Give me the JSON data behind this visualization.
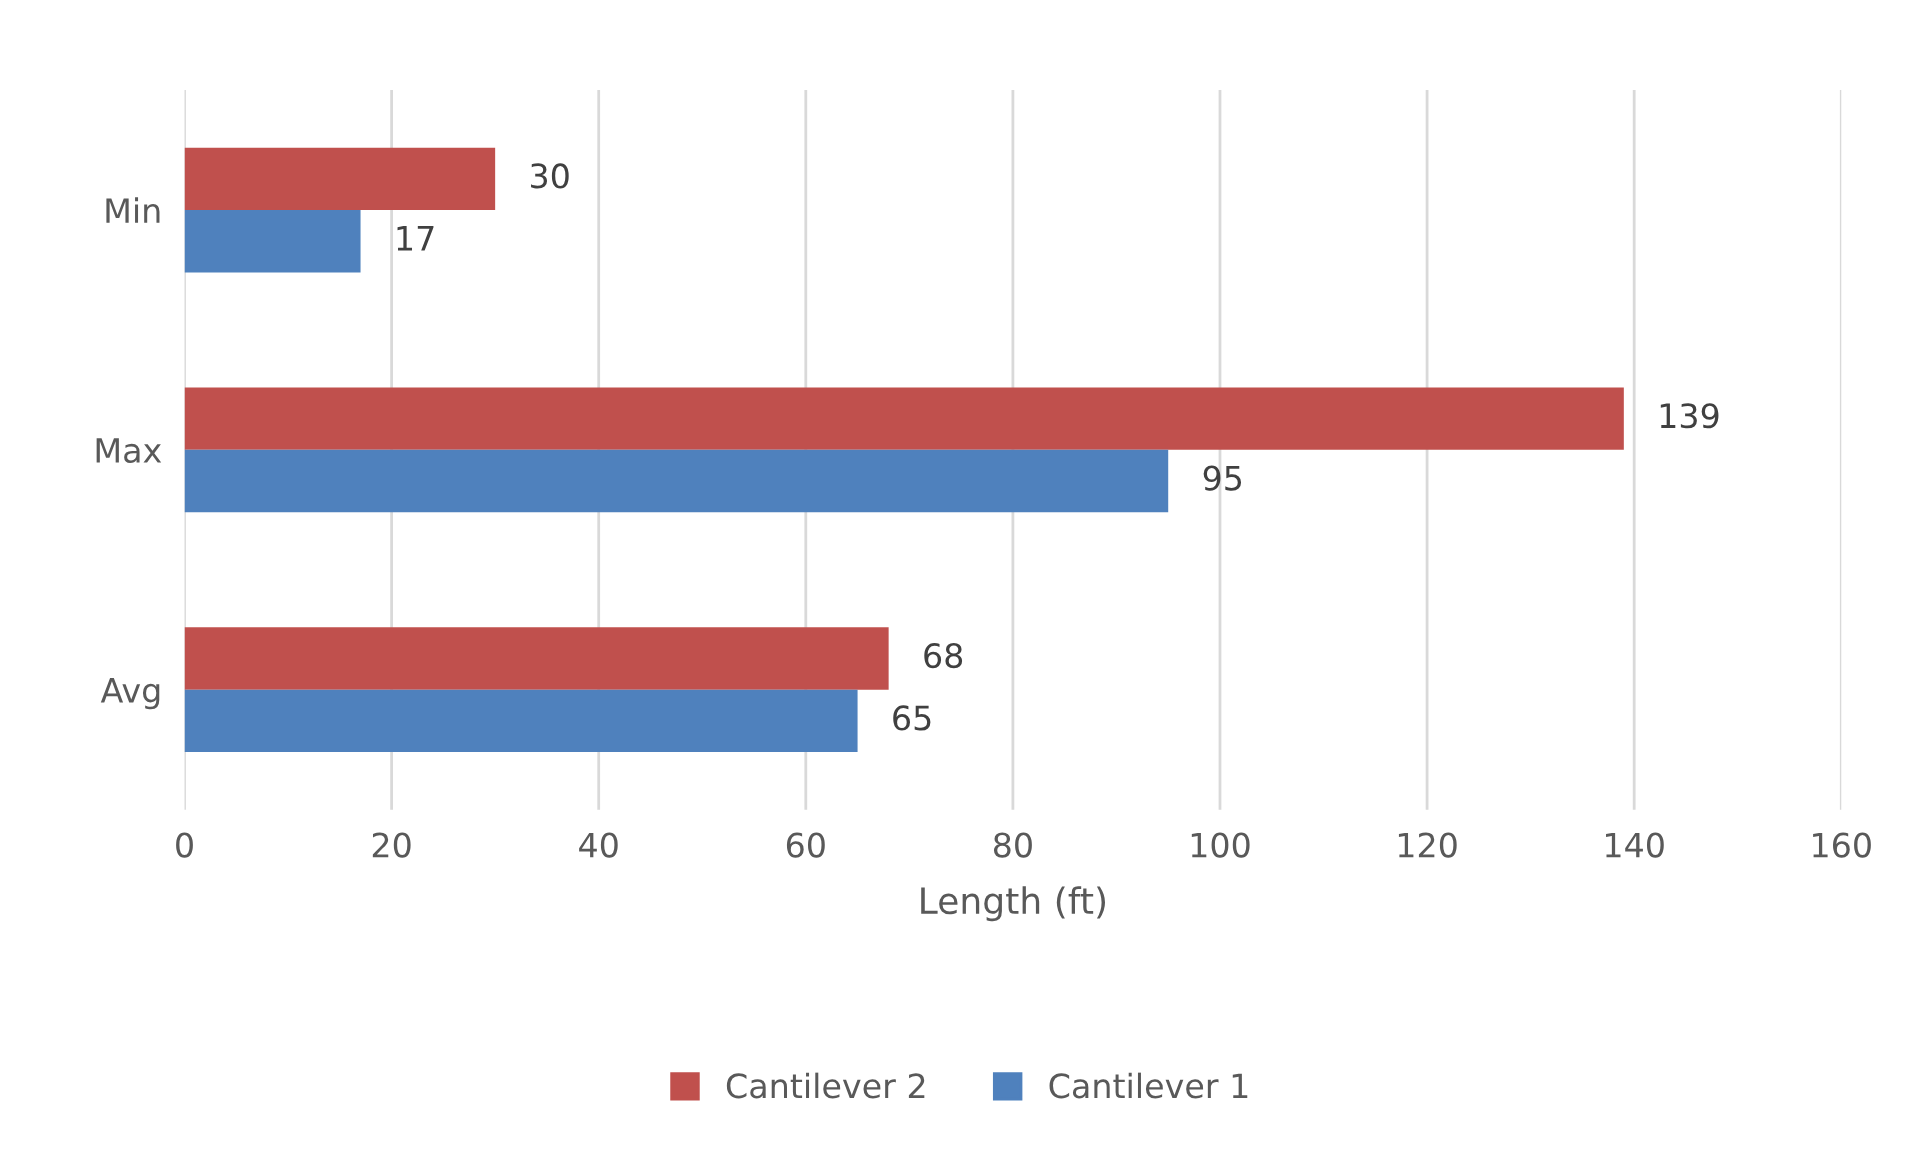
{
  "chart_data": {
    "type": "bar",
    "orientation": "horizontal",
    "xlabel": "Length (ft)",
    "categories": [
      "Min",
      "Max",
      "Avg"
    ],
    "series": [
      {
        "name": "Cantilever 2",
        "color": "#c0504d",
        "values": [
          30,
          139,
          68
        ]
      },
      {
        "name": "Cantilever 1",
        "color": "#4f81bd",
        "values": [
          17,
          95,
          65
        ]
      }
    ],
    "xlim": [
      0,
      160
    ],
    "xticks": [
      0,
      20,
      40,
      60,
      80,
      100,
      120,
      140,
      160
    ],
    "grid": "x",
    "legend": "bottom",
    "data_labels": true
  }
}
